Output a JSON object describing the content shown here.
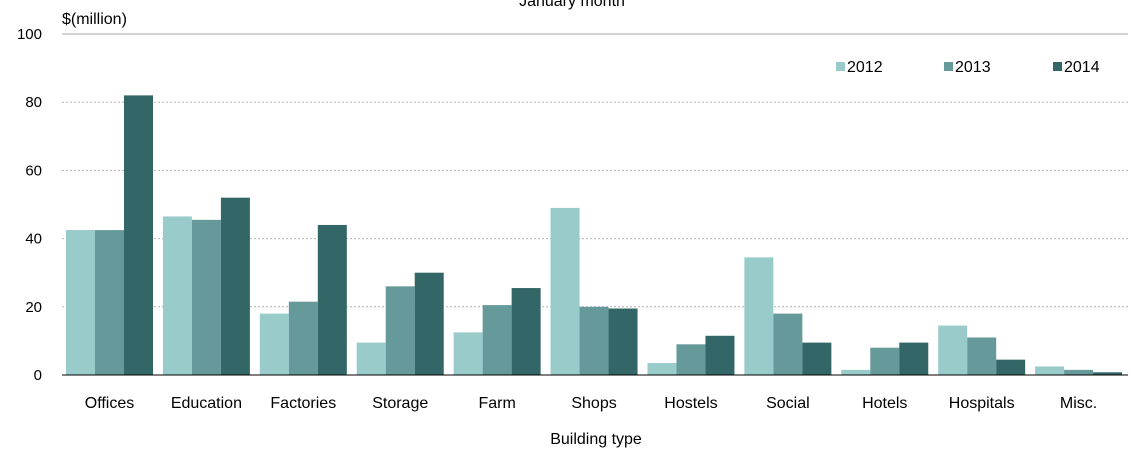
{
  "chart_data": {
    "type": "bar",
    "title": "January month",
    "ylabel": "$(million)",
    "xlabel": "Building type",
    "ylim": [
      0,
      100
    ],
    "yticks": [
      0,
      20,
      40,
      60,
      80,
      100
    ],
    "grid": true,
    "legend_position": "top-right",
    "categories": [
      "Offices",
      "Education",
      "Factories",
      "Storage",
      "Farm",
      "Shops",
      "Hostels",
      "Social",
      "Hotels",
      "Hospitals",
      "Misc."
    ],
    "series": [
      {
        "name": "2012",
        "color": "#99cbcb",
        "values": [
          42.5,
          46.5,
          18,
          9.5,
          12.5,
          49,
          3.5,
          34.5,
          1.5,
          14.5,
          2.5
        ]
      },
      {
        "name": "2013",
        "color": "#669999",
        "values": [
          42.5,
          45.5,
          21.5,
          26,
          20.5,
          20,
          9,
          18,
          8,
          11,
          1.5
        ]
      },
      {
        "name": "2014",
        "color": "#336666",
        "values": [
          82,
          52,
          44,
          30,
          25.5,
          19.5,
          11.5,
          9.5,
          9.5,
          4.5,
          0.8
        ]
      }
    ]
  }
}
